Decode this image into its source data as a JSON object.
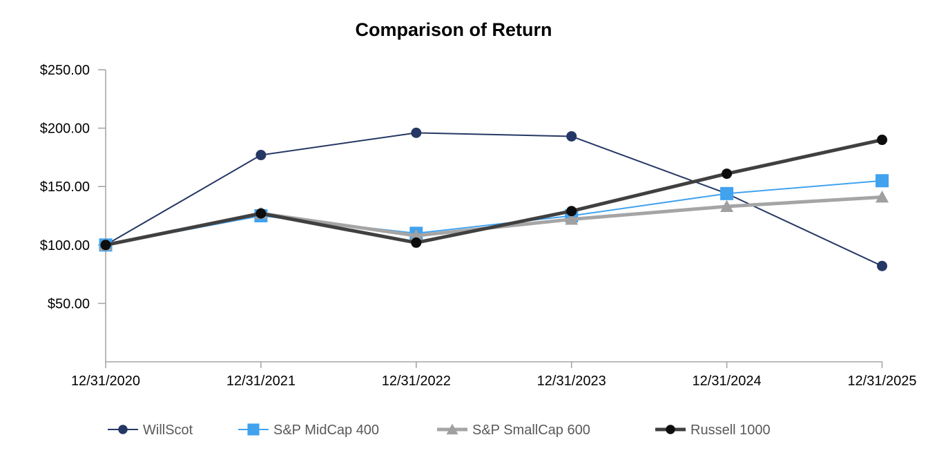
{
  "chart_data": {
    "type": "line",
    "title": "Comparison of Return",
    "x_categories": [
      "12/31/2020",
      "12/31/2021",
      "12/31/2022",
      "12/31/2023",
      "12/31/2024",
      "12/31/2025"
    ],
    "y_axis": {
      "tick_labels": [
        "$250.00",
        "$200.00",
        "$150.00",
        "$100.00",
        "$50.00"
      ],
      "tick_values": [
        250,
        200,
        150,
        100,
        50
      ],
      "ylim": [
        0,
        250
      ]
    },
    "grid": false,
    "legend_position": "bottom",
    "axis_color": "#A6A6A6",
    "label_color": "#000000",
    "legend_text_color": "#595959",
    "series": [
      {
        "name": "WillScot",
        "values": [
          100,
          177,
          196,
          193,
          144,
          82
        ],
        "color": "#253764",
        "marker": "circle",
        "marker_color": "#253764",
        "line_width": 2,
        "marker_size": 15
      },
      {
        "name": "S&P MidCap 400",
        "values": [
          100,
          125,
          110,
          125,
          144,
          155
        ],
        "color": "#41A2EE",
        "marker": "square",
        "marker_color": "#41A2EE",
        "line_width": 2,
        "marker_size": 19
      },
      {
        "name": "S&P SmallCap 600",
        "values": [
          100,
          127,
          108,
          122,
          133,
          141
        ],
        "color": "#A5A5A5",
        "marker": "triangle",
        "marker_color": "#A0A0A0",
        "line_width": 5,
        "marker_size": 19
      },
      {
        "name": "Russell 1000",
        "values": [
          100,
          127,
          102,
          129,
          161,
          190
        ],
        "color": "#404040",
        "marker": "circle",
        "marker_color": "#0D0D0D",
        "line_width": 5,
        "marker_size": 15
      }
    ]
  }
}
